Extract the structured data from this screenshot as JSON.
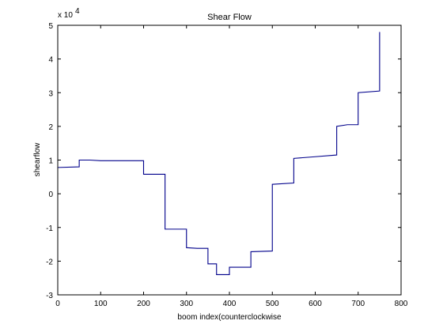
{
  "chart_data": {
    "type": "line",
    "title": "Shear Flow",
    "xlabel": "boom index(counterclockwise",
    "ylabel": "shearflow",
    "y_exponent_label": "x 10",
    "y_exponent_power": "4",
    "xlim": [
      0,
      800
    ],
    "ylim": [
      -3,
      5
    ],
    "x_ticks": [
      0,
      100,
      200,
      300,
      400,
      500,
      600,
      700,
      800
    ],
    "y_ticks": [
      -3,
      -2,
      -1,
      0,
      1,
      2,
      3,
      4,
      5
    ],
    "x_tick_labels": [
      "0",
      "100",
      "200",
      "300",
      "400",
      "500",
      "600",
      "700",
      "800"
    ],
    "y_tick_labels": [
      "-3",
      "-2",
      "-1",
      "0",
      "1",
      "2",
      "3",
      "4",
      "5"
    ],
    "grid": false,
    "line_color": "#00008b",
    "series": [
      {
        "x": [
          0,
          50,
          50,
          75,
          100,
          200,
          200,
          250,
          250,
          300,
          300,
          325,
          350,
          350,
          370,
          370,
          400,
          400,
          450,
          450,
          500,
          500,
          550,
          550,
          600,
          650,
          650,
          675,
          700,
          700,
          750,
          750
        ],
        "values": [
          0.78,
          0.8,
          1.0,
          1.0,
          0.98,
          0.98,
          0.58,
          0.58,
          -1.05,
          -1.05,
          -1.6,
          -1.62,
          -1.62,
          -2.08,
          -2.08,
          -2.4,
          -2.4,
          -2.18,
          -2.18,
          -1.72,
          -1.7,
          0.28,
          0.32,
          1.05,
          1.1,
          1.15,
          2.0,
          2.05,
          2.05,
          3.0,
          3.05,
          4.8
        ]
      }
    ]
  }
}
